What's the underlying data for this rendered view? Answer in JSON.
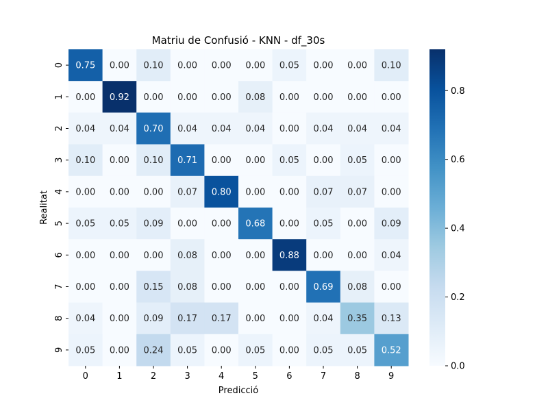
{
  "chart_data": {
    "type": "heatmap",
    "title": "Matriu de Confusió - KNN - df_30s",
    "xlabel": "Predicció",
    "ylabel": "Realitat",
    "x_categories": [
      "0",
      "1",
      "2",
      "3",
      "4",
      "5",
      "6",
      "7",
      "8",
      "9"
    ],
    "y_categories": [
      "0",
      "1",
      "2",
      "3",
      "4",
      "5",
      "6",
      "7",
      "8",
      "9"
    ],
    "values": [
      [
        0.75,
        0.0,
        0.1,
        0.0,
        0.0,
        0.0,
        0.05,
        0.0,
        0.0,
        0.1
      ],
      [
        0.0,
        0.92,
        0.0,
        0.0,
        0.0,
        0.08,
        0.0,
        0.0,
        0.0,
        0.0
      ],
      [
        0.04,
        0.04,
        0.7,
        0.04,
        0.04,
        0.04,
        0.0,
        0.04,
        0.04,
        0.04
      ],
      [
        0.1,
        0.0,
        0.1,
        0.71,
        0.0,
        0.0,
        0.05,
        0.0,
        0.05,
        0.0
      ],
      [
        0.0,
        0.0,
        0.0,
        0.07,
        0.8,
        0.0,
        0.0,
        0.07,
        0.07,
        0.0
      ],
      [
        0.05,
        0.05,
        0.09,
        0.0,
        0.0,
        0.68,
        0.0,
        0.05,
        0.0,
        0.09
      ],
      [
        0.0,
        0.0,
        0.0,
        0.08,
        0.0,
        0.0,
        0.88,
        0.0,
        0.0,
        0.04
      ],
      [
        0.0,
        0.0,
        0.15,
        0.08,
        0.0,
        0.0,
        0.0,
        0.69,
        0.08,
        0.0
      ],
      [
        0.04,
        0.0,
        0.09,
        0.17,
        0.17,
        0.0,
        0.0,
        0.04,
        0.35,
        0.13
      ],
      [
        0.05,
        0.0,
        0.24,
        0.05,
        0.0,
        0.05,
        0.0,
        0.05,
        0.05,
        0.52
      ]
    ],
    "colorbar": {
      "colormap": "Blues",
      "range": [
        0.0,
        0.92
      ],
      "ticks": [
        0.0,
        0.2,
        0.4,
        0.6,
        0.8
      ],
      "tick_labels": [
        "0.0",
        "0.2",
        "0.4",
        "0.6",
        "0.8"
      ]
    },
    "colors": {
      "low": "#f7fbff",
      "high": "#08306b",
      "text_dark": "#262626",
      "text_light": "#ffffff"
    },
    "grid": false
  }
}
